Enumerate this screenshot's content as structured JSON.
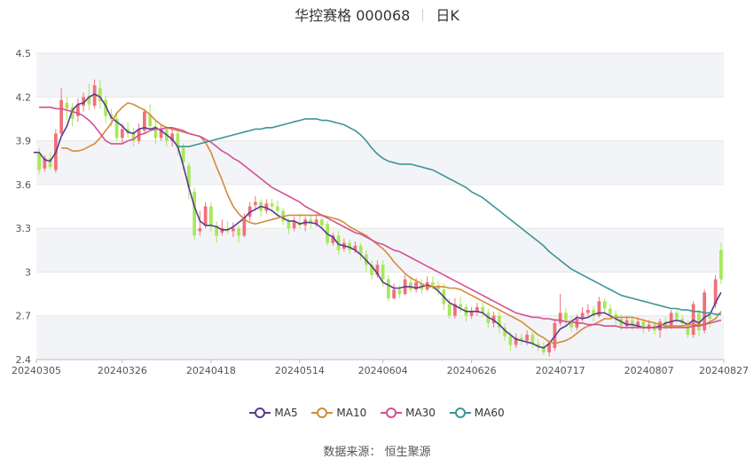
{
  "header": {
    "stock_name": "华控赛格 000068",
    "period": "日K"
  },
  "source": {
    "label": "数据来源：",
    "name": "恒生聚源"
  },
  "colors": {
    "up": "#f0707a",
    "down": "#a7e85a",
    "grid": "#e6e6e6",
    "band": "#f3f4f7",
    "MA5": "#5b3a8f",
    "MA10": "#d68a3a",
    "MA30": "#d44f96",
    "MA60": "#3b9596"
  },
  "chart_data": {
    "type": "candlestick",
    "ylim": [
      2.4,
      4.5
    ],
    "y_ticks": [
      "2.4",
      "2.7",
      "3",
      "3.3",
      "3.6",
      "3.9",
      "4.2",
      "4.5"
    ],
    "x_tick_labels": [
      "20240305",
      "20240326",
      "20240418",
      "20240514",
      "20240604",
      "20240626",
      "20240717",
      "20240807",
      "20240827"
    ],
    "x_tick_index": [
      0,
      15,
      31,
      47,
      62,
      78,
      94,
      110,
      124
    ],
    "candles": [
      [
        3.82,
        3.7,
        3.85,
        3.67
      ],
      [
        3.71,
        3.78,
        3.8,
        3.69
      ],
      [
        3.78,
        3.72,
        3.82,
        3.7
      ],
      [
        3.7,
        3.95,
        3.98,
        3.68
      ],
      [
        3.95,
        4.18,
        4.26,
        3.93
      ],
      [
        4.16,
        4.12,
        4.2,
        4.04
      ],
      [
        4.13,
        4.05,
        4.16,
        4.0
      ],
      [
        4.07,
        4.15,
        4.19,
        4.03
      ],
      [
        4.14,
        4.2,
        4.23,
        4.1
      ],
      [
        4.21,
        4.15,
        4.29,
        4.11
      ],
      [
        4.14,
        4.28,
        4.32,
        4.12
      ],
      [
        4.26,
        4.17,
        4.32,
        4.12
      ],
      [
        4.18,
        4.07,
        4.21,
        4.02
      ],
      [
        4.08,
        4.05,
        4.12,
        4.0
      ],
      [
        4.05,
        3.92,
        4.08,
        3.9
      ],
      [
        3.92,
        3.98,
        4.02,
        3.88
      ],
      [
        3.98,
        3.95,
        4.03,
        3.92
      ],
      [
        3.95,
        3.9,
        3.99,
        3.86
      ],
      [
        3.9,
        3.98,
        4.02,
        3.88
      ],
      [
        3.97,
        4.1,
        4.12,
        3.95
      ],
      [
        4.08,
        4.0,
        4.15,
        3.98
      ],
      [
        4.0,
        3.92,
        4.04,
        3.88
      ],
      [
        3.92,
        3.98,
        4.01,
        3.9
      ],
      [
        3.98,
        3.9,
        4.0,
        3.86
      ],
      [
        3.9,
        3.95,
        3.99,
        3.86
      ],
      [
        3.95,
        3.85,
        3.98,
        3.8
      ],
      [
        3.85,
        3.75,
        3.88,
        3.7
      ],
      [
        3.73,
        3.58,
        3.75,
        3.5
      ],
      [
        3.55,
        3.25,
        3.58,
        3.22
      ],
      [
        3.28,
        3.3,
        3.42,
        3.25
      ],
      [
        3.32,
        3.45,
        3.48,
        3.3
      ],
      [
        3.45,
        3.32,
        3.48,
        3.28
      ],
      [
        3.32,
        3.25,
        3.35,
        3.2
      ],
      [
        3.27,
        3.3,
        3.36,
        3.25
      ],
      [
        3.3,
        3.28,
        3.35,
        3.26
      ],
      [
        3.28,
        3.3,
        3.34,
        3.24
      ],
      [
        3.3,
        3.25,
        3.32,
        3.2
      ],
      [
        3.25,
        3.38,
        3.4,
        3.24
      ],
      [
        3.38,
        3.45,
        3.48,
        3.35
      ],
      [
        3.46,
        3.48,
        3.52,
        3.42
      ],
      [
        3.48,
        3.42,
        3.5,
        3.38
      ],
      [
        3.42,
        3.47,
        3.5,
        3.4
      ],
      [
        3.47,
        3.45,
        3.5,
        3.42
      ],
      [
        3.45,
        3.42,
        3.49,
        3.38
      ],
      [
        3.42,
        3.35,
        3.44,
        3.32
      ],
      [
        3.35,
        3.3,
        3.37,
        3.26
      ],
      [
        3.3,
        3.35,
        3.38,
        3.28
      ],
      [
        3.34,
        3.32,
        3.4,
        3.3
      ],
      [
        3.32,
        3.36,
        3.38,
        3.28
      ],
      [
        3.36,
        3.33,
        3.39,
        3.3
      ],
      [
        3.33,
        3.36,
        3.4,
        3.31
      ],
      [
        3.36,
        3.32,
        3.38,
        3.3
      ],
      [
        3.33,
        3.2,
        3.35,
        3.18
      ],
      [
        3.2,
        3.25,
        3.27,
        3.18
      ],
      [
        3.25,
        3.15,
        3.28,
        3.12
      ],
      [
        3.16,
        3.2,
        3.23,
        3.14
      ],
      [
        3.2,
        3.15,
        3.22,
        3.12
      ],
      [
        3.15,
        3.18,
        3.21,
        3.13
      ],
      [
        3.18,
        3.12,
        3.2,
        3.08
      ],
      [
        3.12,
        3.05,
        3.15,
        3.0
      ],
      [
        3.05,
        2.98,
        3.08,
        2.95
      ],
      [
        2.98,
        3.05,
        3.08,
        2.96
      ],
      [
        3.05,
        2.95,
        3.08,
        2.9
      ],
      [
        2.95,
        2.82,
        2.98,
        2.8
      ],
      [
        2.82,
        2.88,
        2.92,
        2.81
      ],
      [
        2.88,
        2.85,
        2.91,
        2.82
      ],
      [
        2.85,
        2.95,
        2.98,
        2.84
      ],
      [
        2.93,
        2.88,
        2.97,
        2.86
      ],
      [
        2.88,
        2.93,
        2.96,
        2.86
      ],
      [
        2.92,
        2.88,
        2.95,
        2.85
      ],
      [
        2.88,
        2.93,
        2.97,
        2.87
      ],
      [
        2.93,
        2.91,
        2.97,
        2.88
      ],
      [
        2.91,
        2.88,
        2.94,
        2.84
      ],
      [
        2.88,
        2.78,
        2.92,
        2.74
      ],
      [
        2.78,
        2.7,
        2.82,
        2.68
      ],
      [
        2.7,
        2.78,
        2.82,
        2.68
      ],
      [
        2.78,
        2.76,
        2.83,
        2.72
      ],
      [
        2.76,
        2.7,
        2.78,
        2.66
      ],
      [
        2.7,
        2.73,
        2.76,
        2.68
      ],
      [
        2.73,
        2.76,
        2.79,
        2.7
      ],
      [
        2.76,
        2.72,
        2.79,
        2.69
      ],
      [
        2.72,
        2.65,
        2.75,
        2.62
      ],
      [
        2.65,
        2.7,
        2.73,
        2.62
      ],
      [
        2.7,
        2.62,
        2.73,
        2.58
      ],
      [
        2.62,
        2.56,
        2.65,
        2.53
      ],
      [
        2.56,
        2.5,
        2.59,
        2.46
      ],
      [
        2.5,
        2.55,
        2.58,
        2.48
      ],
      [
        2.55,
        2.53,
        2.58,
        2.5
      ],
      [
        2.53,
        2.57,
        2.6,
        2.5
      ],
      [
        2.57,
        2.51,
        2.59,
        2.48
      ],
      [
        2.51,
        2.49,
        2.54,
        2.46
      ],
      [
        2.49,
        2.45,
        2.52,
        2.43
      ],
      [
        2.45,
        2.51,
        2.53,
        2.42
      ],
      [
        2.48,
        2.65,
        2.68,
        2.46
      ],
      [
        2.65,
        2.72,
        2.85,
        2.63
      ],
      [
        2.72,
        2.67,
        2.75,
        2.64
      ],
      [
        2.67,
        2.62,
        2.7,
        2.59
      ],
      [
        2.62,
        2.68,
        2.71,
        2.6
      ],
      [
        2.68,
        2.72,
        2.76,
        2.66
      ],
      [
        2.72,
        2.74,
        2.78,
        2.7
      ],
      [
        2.74,
        2.7,
        2.77,
        2.66
      ],
      [
        2.7,
        2.8,
        2.83,
        2.69
      ],
      [
        2.8,
        2.75,
        2.82,
        2.72
      ],
      [
        2.75,
        2.71,
        2.78,
        2.68
      ],
      [
        2.71,
        2.68,
        2.74,
        2.64
      ],
      [
        2.68,
        2.63,
        2.71,
        2.6
      ],
      [
        2.63,
        2.67,
        2.7,
        2.61
      ],
      [
        2.67,
        2.63,
        2.7,
        2.6
      ],
      [
        2.63,
        2.66,
        2.69,
        2.61
      ],
      [
        2.66,
        2.61,
        2.68,
        2.58
      ],
      [
        2.61,
        2.64,
        2.67,
        2.59
      ],
      [
        2.64,
        2.6,
        2.66,
        2.57
      ],
      [
        2.6,
        2.66,
        2.68,
        2.55
      ],
      [
        2.66,
        2.63,
        2.69,
        2.6
      ],
      [
        2.63,
        2.72,
        2.74,
        2.61
      ],
      [
        2.72,
        2.68,
        2.74,
        2.65
      ],
      [
        2.68,
        2.65,
        2.71,
        2.62
      ],
      [
        2.65,
        2.57,
        2.67,
        2.55
      ],
      [
        2.57,
        2.78,
        2.8,
        2.55
      ],
      [
        2.72,
        2.6,
        2.74,
        2.56
      ],
      [
        2.6,
        2.86,
        2.88,
        2.58
      ],
      [
        2.7,
        2.68,
        2.72,
        2.62
      ],
      [
        2.78,
        2.95,
        2.98,
        2.75
      ],
      [
        3.15,
        2.95,
        3.2,
        2.92
      ]
    ],
    "series": [
      {
        "name": "MA5",
        "values": [
          3.82,
          3.82,
          3.77,
          3.76,
          3.82,
          3.93,
          4.0,
          4.11,
          4.15,
          4.16,
          4.2,
          4.22,
          4.2,
          4.14,
          4.06,
          4.03,
          4.0,
          3.96,
          3.95,
          3.98,
          3.99,
          3.98,
          3.99,
          3.97,
          3.94,
          3.91,
          3.86,
          3.73,
          3.58,
          3.45,
          3.35,
          3.32,
          3.32,
          3.31,
          3.29,
          3.29,
          3.31,
          3.34,
          3.37,
          3.41,
          3.43,
          3.45,
          3.44,
          3.42,
          3.39,
          3.37,
          3.35,
          3.35,
          3.33,
          3.34,
          3.34,
          3.33,
          3.3,
          3.26,
          3.24,
          3.19,
          3.18,
          3.17,
          3.15,
          3.12,
          3.08,
          3.04,
          2.99,
          2.93,
          2.91,
          2.89,
          2.89,
          2.9,
          2.9,
          2.89,
          2.9,
          2.91,
          2.9,
          2.87,
          2.83,
          2.79,
          2.77,
          2.75,
          2.73,
          2.73,
          2.73,
          2.72,
          2.69,
          2.67,
          2.64,
          2.6,
          2.57,
          2.54,
          2.53,
          2.52,
          2.51,
          2.49,
          2.48,
          2.51,
          2.56,
          2.61,
          2.63,
          2.66,
          2.69,
          2.68,
          2.69,
          2.71,
          2.72,
          2.72,
          2.7,
          2.68,
          2.66,
          2.64,
          2.64,
          2.63,
          2.62,
          2.62,
          2.62,
          2.63,
          2.65,
          2.66,
          2.67,
          2.66,
          2.64,
          2.67,
          2.65,
          2.69,
          2.71,
          2.79,
          2.86
        ]
      },
      {
        "name": "MA10",
        "values": [
          3.85,
          3.85,
          3.83,
          3.83,
          3.84,
          3.86,
          3.88,
          3.92,
          3.97,
          4.02,
          4.09,
          4.13,
          4.16,
          4.15,
          4.13,
          4.11,
          4.08,
          4.04,
          4.01,
          3.99,
          3.98,
          3.97,
          3.96,
          3.95,
          3.94,
          3.93,
          3.89,
          3.82,
          3.72,
          3.63,
          3.53,
          3.45,
          3.4,
          3.36,
          3.34,
          3.33,
          3.34,
          3.35,
          3.36,
          3.37,
          3.38,
          3.39,
          3.39,
          3.39,
          3.39,
          3.39,
          3.39,
          3.39,
          3.38,
          3.37,
          3.36,
          3.34,
          3.31,
          3.29,
          3.27,
          3.25,
          3.22,
          3.19,
          3.16,
          3.12,
          3.07,
          3.03,
          2.99,
          2.96,
          2.94,
          2.92,
          2.9,
          2.9,
          2.9,
          2.9,
          2.89,
          2.89,
          2.88,
          2.86,
          2.84,
          2.82,
          2.8,
          2.78,
          2.76,
          2.74,
          2.72,
          2.7,
          2.68,
          2.66,
          2.63,
          2.6,
          2.57,
          2.55,
          2.52,
          2.51,
          2.52,
          2.53,
          2.55,
          2.58,
          2.61,
          2.63,
          2.64,
          2.66,
          2.68,
          2.68,
          2.69,
          2.69,
          2.69,
          2.69,
          2.68,
          2.67,
          2.66,
          2.65,
          2.64,
          2.63,
          2.63,
          2.63,
          2.63,
          2.64,
          2.64,
          2.64,
          2.64,
          2.66,
          2.68,
          2.73
        ]
      },
      {
        "name": "MA30",
        "values": [
          4.13,
          4.13,
          4.13,
          4.12,
          4.12,
          4.11,
          4.1,
          4.09,
          4.07,
          4.04,
          4.0,
          3.95,
          3.9,
          3.88,
          3.88,
          3.88,
          3.9,
          3.91,
          3.94,
          3.95,
          3.97,
          3.98,
          3.98,
          3.99,
          3.99,
          3.98,
          3.97,
          3.95,
          3.94,
          3.93,
          3.91,
          3.89,
          3.86,
          3.83,
          3.81,
          3.78,
          3.76,
          3.73,
          3.7,
          3.67,
          3.64,
          3.61,
          3.58,
          3.56,
          3.54,
          3.52,
          3.5,
          3.48,
          3.45,
          3.43,
          3.41,
          3.39,
          3.37,
          3.35,
          3.33,
          3.31,
          3.29,
          3.27,
          3.26,
          3.24,
          3.22,
          3.2,
          3.19,
          3.17,
          3.15,
          3.14,
          3.12,
          3.1,
          3.08,
          3.06,
          3.04,
          3.02,
          3.0,
          2.98,
          2.96,
          2.94,
          2.92,
          2.9,
          2.88,
          2.86,
          2.84,
          2.82,
          2.8,
          2.78,
          2.76,
          2.74,
          2.72,
          2.71,
          2.7,
          2.69,
          2.69,
          2.68,
          2.68,
          2.67,
          2.67,
          2.66,
          2.66,
          2.65,
          2.65,
          2.64,
          2.64,
          2.64,
          2.63,
          2.63,
          2.63,
          2.62,
          2.62,
          2.62,
          2.62,
          2.62,
          2.62,
          2.62,
          2.62,
          2.62,
          2.62,
          2.62,
          2.62,
          2.62,
          2.63,
          2.63,
          2.64,
          2.65,
          2.66,
          2.67
        ]
      },
      {
        "name": "MA60",
        "values": [
          3.86,
          3.86,
          3.86,
          3.87,
          3.88,
          3.89,
          3.9,
          3.91,
          3.92,
          3.93,
          3.94,
          3.95,
          3.96,
          3.97,
          3.98,
          3.98,
          3.99,
          3.99,
          4.0,
          4.01,
          4.02,
          4.03,
          4.04,
          4.05,
          4.05,
          4.05,
          4.04,
          4.04,
          4.03,
          4.02,
          4.01,
          3.99,
          3.97,
          3.94,
          3.9,
          3.85,
          3.81,
          3.78,
          3.76,
          3.75,
          3.74,
          3.74,
          3.74,
          3.73,
          3.72,
          3.71,
          3.7,
          3.68,
          3.66,
          3.64,
          3.62,
          3.6,
          3.58,
          3.55,
          3.53,
          3.51,
          3.48,
          3.45,
          3.42,
          3.39,
          3.36,
          3.33,
          3.3,
          3.27,
          3.24,
          3.21,
          3.18,
          3.14,
          3.11,
          3.08,
          3.05,
          3.02,
          3.0,
          2.98,
          2.96,
          2.94,
          2.92,
          2.9,
          2.88,
          2.86,
          2.84,
          2.83,
          2.82,
          2.81,
          2.8,
          2.79,
          2.78,
          2.77,
          2.76,
          2.75,
          2.75,
          2.74,
          2.74,
          2.73,
          2.73,
          2.72,
          2.72,
          2.71,
          2.71
        ]
      }
    ]
  }
}
